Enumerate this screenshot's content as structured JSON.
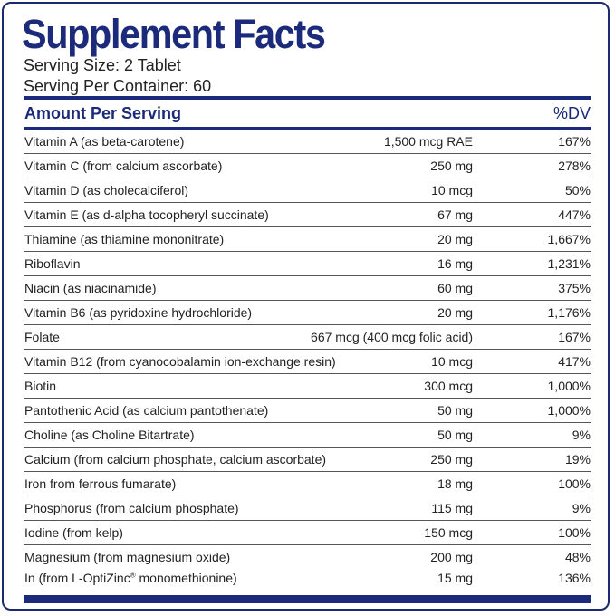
{
  "title": "Supplement Facts",
  "serving_size": "Serving Size: 2 Tablet",
  "servings_per_container": "Serving Per Container: 60",
  "header": {
    "amount": "Amount Per Serving",
    "dv": "%DV"
  },
  "brand_color": "#1b2a7a",
  "rows": [
    {
      "name": "Vitamin A (as beta-carotene)",
      "amount": "1,500 mcg RAE",
      "dv": "167%"
    },
    {
      "name": "Vitamin C (from calcium ascorbate)",
      "amount": "250 mg",
      "dv": "278%"
    },
    {
      "name": "Vitamin D (as cholecalciferol)",
      "amount": "10 mcg",
      "dv": "50%"
    },
    {
      "name": "Vitamin E (as d-alpha tocopheryl succinate)",
      "amount": "67 mg",
      "dv": "447%"
    },
    {
      "name": "Thiamine (as thiamine mononitrate)",
      "amount": "20 mg",
      "dv": "1,667%"
    },
    {
      "name": "Riboflavin",
      "amount": "16 mg",
      "dv": "1,231%"
    },
    {
      "name": "Niacin (as niacinamide)",
      "amount": "60 mg",
      "dv": "375%"
    },
    {
      "name": "Vitamin B6 (as pyridoxine hydrochloride)",
      "amount": "20 mg",
      "dv": "1,176%"
    },
    {
      "name": "Folate",
      "amount": "667 mcg (400 mcg folic acid)",
      "dv": "167%"
    },
    {
      "name": "Vitamin B12 (from cyanocobalamin ion-exchange resin)",
      "amount": "10 mcg",
      "dv": "417%"
    },
    {
      "name": "Biotin",
      "amount": "300 mcg",
      "dv": "1,000%"
    },
    {
      "name": "Pantothenic Acid (as calcium pantothenate)",
      "amount": "50 mg",
      "dv": "1,000%"
    },
    {
      "name": "Choline (as Choline Bitartrate)",
      "amount": "50 mg",
      "dv": "9%"
    },
    {
      "name": "Calcium  (from calcium phosphate, calcium ascorbate)",
      "amount": "250 mg",
      "dv": "19%"
    },
    {
      "name": "Iron from ferrous fumarate)",
      "amount": "18 mg",
      "dv": "100%"
    },
    {
      "name": "Phosphorus (from calcium phosphate)",
      "amount": "115 mg",
      "dv": "9%"
    },
    {
      "name": "Iodine (from kelp)",
      "amount": "150 mcg",
      "dv": "100%"
    },
    {
      "name": "Magnesium (from magnesium oxide)",
      "amount": "200 mg",
      "dv": "48%"
    },
    {
      "name_pre": "In (from L-OptiZinc",
      "name_sup": "®",
      "name_post": " monomethionine)",
      "amount": "15 mg",
      "dv": "136%"
    }
  ]
}
